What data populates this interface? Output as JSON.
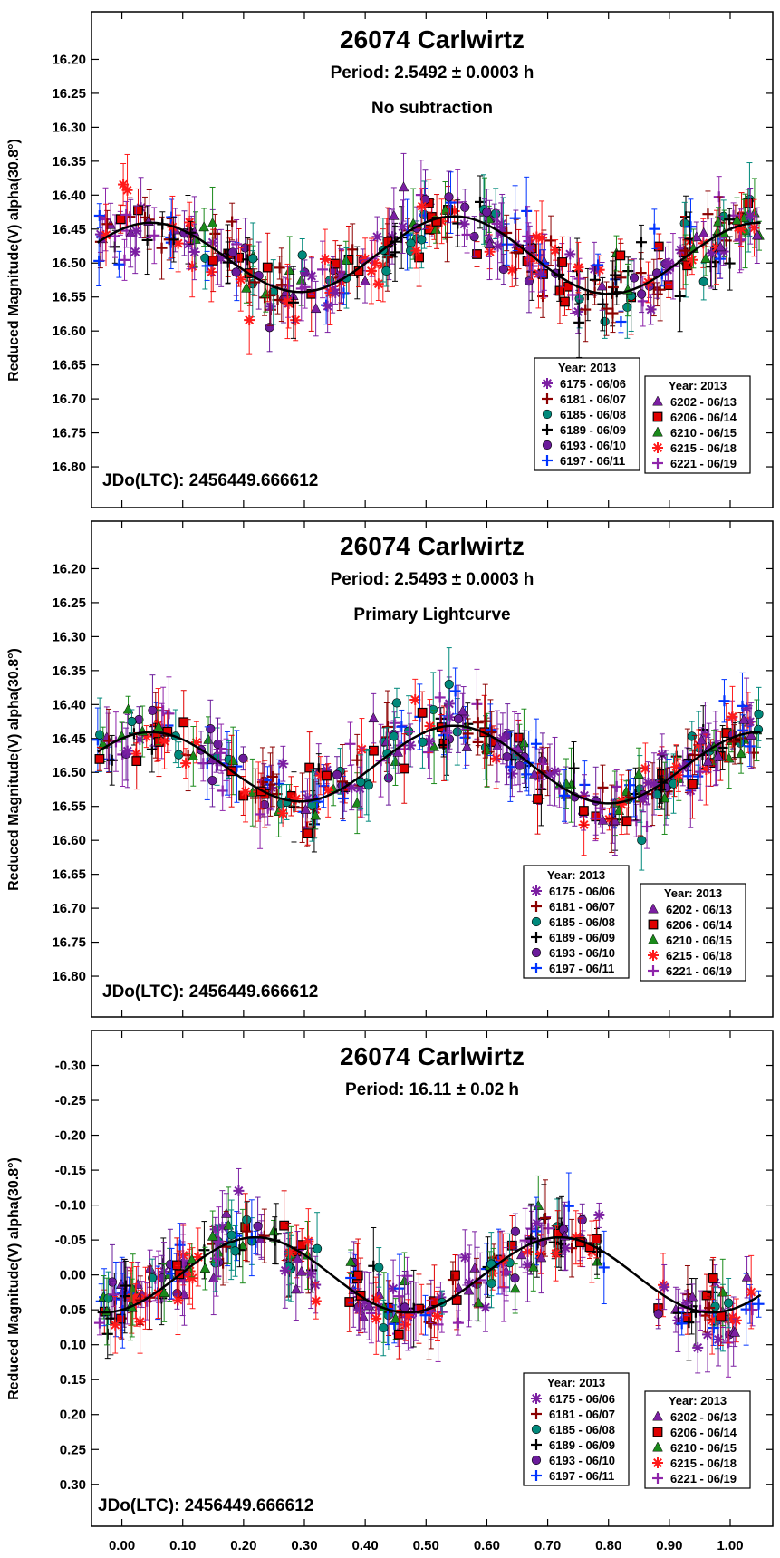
{
  "chart_data": [
    {
      "type": "scatter",
      "title": "26074 Carlwirtz",
      "subtitle": "Period: 2.5492 ± 0.0003 h",
      "note": "No subtraction",
      "ylabel": "Reduced Magnitude(V) alpha(30.8°)",
      "jdo": "JDo(LTC): 2456449.666612",
      "xlim": [
        -0.05,
        1.07
      ],
      "ylim": [
        16.86,
        16.13
      ],
      "yticks": [
        "16.20",
        "16.25",
        "16.30",
        "16.35",
        "16.40",
        "16.45",
        "16.50",
        "16.55",
        "16.60",
        "16.65",
        "16.70",
        "16.75",
        "16.80"
      ],
      "curve": {
        "mean": 16.49,
        "a1": 0.005,
        "b1": 0.0,
        "a2": -0.045,
        "b2": -0.03
      },
      "scatter": 0.035
    },
    {
      "type": "scatter",
      "title": "26074 Carlwirtz",
      "subtitle": "Period: 2.5493 ± 0.0003 h",
      "note": "Primary Lightcurve",
      "ylabel": "Reduced Magnitude(V) alpha(30.8°)",
      "jdo": "JDo(LTC): 2456449.666612",
      "xlim": [
        -0.05,
        1.07
      ],
      "ylim": [
        16.86,
        16.13
      ],
      "yticks": [
        "16.20",
        "16.25",
        "16.30",
        "16.35",
        "16.40",
        "16.45",
        "16.50",
        "16.55",
        "16.60",
        "16.65",
        "16.70",
        "16.75",
        "16.80"
      ],
      "curve": {
        "mean": 16.49,
        "a1": 0.005,
        "b1": 0.0,
        "a2": -0.045,
        "b2": -0.03
      },
      "scatter": 0.03
    },
    {
      "type": "scatter",
      "title": "26074 Carlwirtz",
      "subtitle": "Period: 16.11 ± 0.02 h",
      "note": "",
      "ylabel": "Reduced Magnitude(V) alpha(30.8°)",
      "jdo": "JDo(LTC): 2456449.666612",
      "xlim": [
        -0.05,
        1.07
      ],
      "xticks": [
        "0.00",
        "0.10",
        "0.20",
        "0.30",
        "0.40",
        "0.50",
        "0.60",
        "0.70",
        "0.80",
        "0.90",
        "1.00"
      ],
      "ylim": [
        0.36,
        -0.35
      ],
      "yticks": [
        "-0.30",
        "-0.25",
        "-0.20",
        "-0.15",
        "-0.10",
        "-0.05",
        "0.00",
        "0.05",
        "0.10",
        "0.15",
        "0.20",
        "0.25",
        "0.30"
      ],
      "curve": {
        "mean": 0.0,
        "a1": 0.0,
        "b1": 0.0,
        "a2": 0.05,
        "b2": -0.02
      },
      "scatter": 0.03,
      "gap": [
        0.33,
        0.37
      ]
    }
  ],
  "legend": {
    "year_label": "Year: 2013",
    "left": [
      {
        "label": "6175 - 06/06",
        "color": "#7b1fa2",
        "marker": "asterisk"
      },
      {
        "label": "6181 - 06/07",
        "color": "#8b0000",
        "marker": "plus"
      },
      {
        "label": "6185 - 06/08",
        "color": "#00897b",
        "marker": "circle"
      },
      {
        "label": "6189 - 06/09",
        "color": "#000000",
        "marker": "plus"
      },
      {
        "label": "6193 - 06/10",
        "color": "#6a1b9a",
        "marker": "circle"
      },
      {
        "label": "6197 - 06/11",
        "color": "#0033ff",
        "marker": "plus"
      }
    ],
    "right": [
      {
        "label": "6202 - 06/13",
        "color": "#7b1fa2",
        "marker": "triangle"
      },
      {
        "label": "6206 - 06/14",
        "color": "#e00000",
        "marker": "square"
      },
      {
        "label": "6210 - 06/15",
        "color": "#1b8a1b",
        "marker": "triangle"
      },
      {
        "label": "6215 - 06/18",
        "color": "#ff1a1a",
        "marker": "asterisk"
      },
      {
        "label": "6221 - 06/19",
        "color": "#8e24aa",
        "marker": "plus"
      }
    ]
  }
}
